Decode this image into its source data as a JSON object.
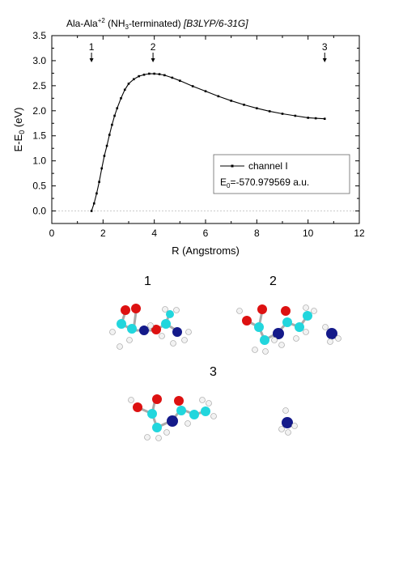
{
  "chart_data": {
    "type": "line",
    "title_main": "Ala-Ala",
    "title_charge": "+2",
    "title_term_prefix": "(NH",
    "title_term_sub": "3",
    "title_term_suffix": "-terminated)",
    "title_method": "[B3LYP/6-31G]",
    "xlabel": "R (Angstroms)",
    "ylabel_main": "E-E",
    "ylabel_sub": "0",
    "ylabel_unit": "(eV)",
    "xlim": [
      0,
      12
    ],
    "ylim": [
      -0.25,
      3.5
    ],
    "xticks": [
      "0",
      "2",
      "4",
      "6",
      "8",
      "10",
      "12"
    ],
    "yticks": [
      "0.0",
      "0.5",
      "1.0",
      "1.5",
      "2.0",
      "2.5",
      "3.0",
      "3.5"
    ],
    "legend": {
      "series_name": "channel I",
      "e0_prefix": "E",
      "e0_sub": "0",
      "e0_value": "=-570.979569 a.u."
    },
    "arrows": [
      {
        "label": "1",
        "x": 1.55
      },
      {
        "label": "2",
        "x": 3.95
      },
      {
        "label": "3",
        "x": 10.65
      }
    ],
    "series": [
      {
        "name": "channel I",
        "x": [
          1.55,
          1.65,
          1.75,
          1.85,
          1.95,
          2.05,
          2.15,
          2.25,
          2.35,
          2.45,
          2.55,
          2.7,
          2.85,
          3.0,
          3.2,
          3.4,
          3.6,
          3.8,
          4.0,
          4.2,
          4.4,
          4.7,
          5.0,
          5.5,
          6.0,
          6.5,
          7.0,
          7.5,
          8.0,
          8.5,
          9.0,
          9.5,
          10.0,
          10.3,
          10.65
        ],
        "y": [
          0.0,
          0.15,
          0.35,
          0.58,
          0.85,
          1.1,
          1.3,
          1.52,
          1.72,
          1.9,
          2.05,
          2.25,
          2.42,
          2.54,
          2.63,
          2.69,
          2.72,
          2.74,
          2.74,
          2.73,
          2.71,
          2.66,
          2.6,
          2.49,
          2.39,
          2.29,
          2.2,
          2.12,
          2.05,
          1.99,
          1.94,
          1.9,
          1.86,
          1.85,
          1.84
        ]
      }
    ]
  },
  "molecules": [
    {
      "label": "1"
    },
    {
      "label": "2"
    },
    {
      "label": "3"
    }
  ],
  "colors": {
    "carbon": "#22d6dd",
    "oxygen": "#dd1111",
    "nitrogen": "#141a8a",
    "hydrogen": "#eeeeee",
    "bond": "#999999"
  }
}
